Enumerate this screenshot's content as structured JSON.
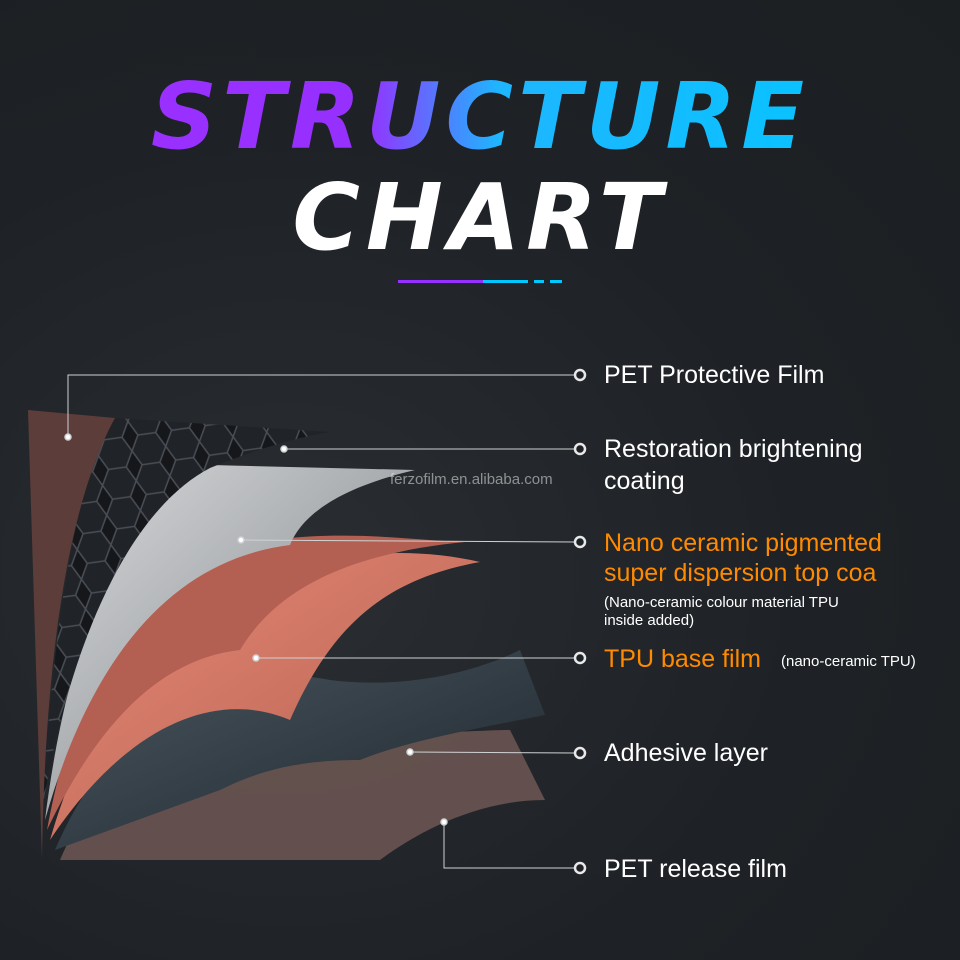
{
  "title": {
    "line1": "STRUCTURE",
    "line2": "CHART"
  },
  "watermark": "ferzofilm.en.alibaba.com",
  "colors": {
    "purple": "#9630ff",
    "cyan": "#00c8ff",
    "orange": "#ff8a00"
  },
  "layers": [
    {
      "label": "PET Protective Film"
    },
    {
      "label": "Restoration brightening",
      "label2": "coating"
    },
    {
      "label": "Nano ceramic pigmented",
      "label2": "super dispersion top coa",
      "note": "(Nano-ceramic colour material TPU",
      "note2": "inside added)"
    },
    {
      "label": "TPU base film",
      "note": "(nano-ceramic TPU)"
    },
    {
      "label": "Adhesive layer"
    },
    {
      "label": "PET release film"
    }
  ]
}
